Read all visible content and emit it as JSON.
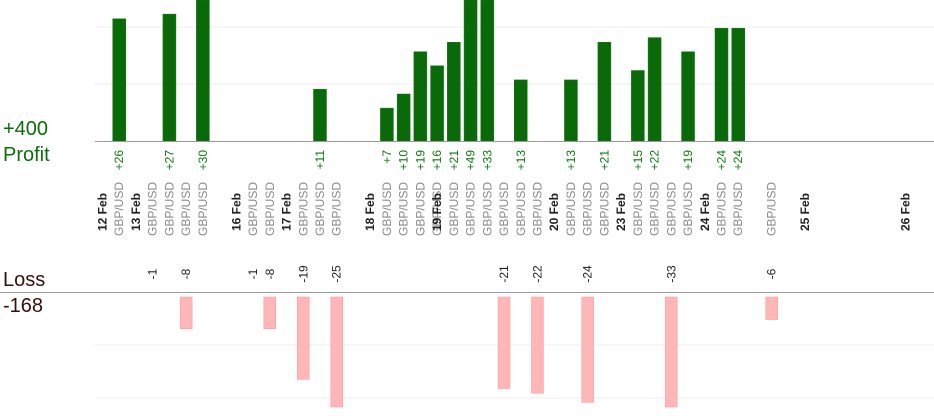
{
  "labels": {
    "profit_total": "+400",
    "profit_word": "Profit",
    "loss_word": "Loss",
    "loss_total": "-168"
  },
  "colors": {
    "profit_bar": "#0a6a0a",
    "profit_bar_edge": "#0c7a0c",
    "profit_text": "#0b7a0b",
    "loss_bar": "#ffb6b6",
    "loss_bar_edge": "#ff9a9a",
    "loss_text": "#222222",
    "axis": "#999999",
    "grid": "#eeeeee",
    "date_text": "#222222",
    "pair_text": "#8a8a8a"
  },
  "chart_data": {
    "type": "bar",
    "profit_max_shown": 30,
    "loss_max_shown": 25,
    "dates": [
      {
        "label": "12 Feb",
        "slot": 0
      },
      {
        "label": "13 Feb",
        "slot": 2
      },
      {
        "label": "16 Feb",
        "slot": 8
      },
      {
        "label": "17 Feb",
        "slot": 11
      },
      {
        "label": "18 Feb",
        "slot": 16
      },
      {
        "label": "19 Feb",
        "slot": 20
      },
      {
        "label": "20 Feb",
        "slot": 27
      },
      {
        "label": "23 Feb",
        "slot": 31
      },
      {
        "label": "24 Feb",
        "slot": 36
      },
      {
        "label": "25 Feb",
        "slot": 42
      },
      {
        "label": "26 Feb",
        "slot": 48
      }
    ],
    "trades": [
      {
        "slot": 1,
        "pair": "GBP/USD",
        "value": 26
      },
      {
        "slot": 3,
        "pair": "GBP/USD",
        "value": -1
      },
      {
        "slot": 4,
        "pair": "GBP/USD",
        "value": 27
      },
      {
        "slot": 5,
        "pair": "GBP/USD",
        "value": -8
      },
      {
        "slot": 6,
        "pair": "GBP/USD",
        "value": 30
      },
      {
        "slot": 9,
        "pair": "GBP/USD",
        "value": -1
      },
      {
        "slot": 10,
        "pair": "GBP/USD",
        "value": -8
      },
      {
        "slot": 12,
        "pair": "GBP/USD",
        "value": -19
      },
      {
        "slot": 13,
        "pair": "GBP/USD",
        "value": 11
      },
      {
        "slot": 14,
        "pair": "GBP/USD",
        "value": -25
      },
      {
        "slot": 17,
        "pair": "GBP/USD",
        "value": 7
      },
      {
        "slot": 18,
        "pair": "GBP/USD",
        "value": 10
      },
      {
        "slot": 19,
        "pair": "GBP/USD",
        "value": 19
      },
      {
        "slot": 20,
        "pair": "GBP/USD",
        "value": 16
      },
      {
        "slot": 21,
        "pair": "GBP/USD",
        "value": 21
      },
      {
        "slot": 22,
        "pair": "GBP/USD",
        "value": 49
      },
      {
        "slot": 23,
        "pair": "GBP/USD",
        "value": 33
      },
      {
        "slot": 24,
        "pair": "GBP/USD",
        "value": -21
      },
      {
        "slot": 25,
        "pair": "GBP/USD",
        "value": 13
      },
      {
        "slot": 26,
        "pair": "GBP/USD",
        "value": -22
      },
      {
        "slot": 28,
        "pair": "GBP/USD",
        "value": 13
      },
      {
        "slot": 29,
        "pair": "GBP/USD",
        "value": -24
      },
      {
        "slot": 30,
        "pair": "GBP/USD",
        "value": 21
      },
      {
        "slot": 32,
        "pair": "GBP/USD",
        "value": 15
      },
      {
        "slot": 33,
        "pair": "GBP/USD",
        "value": 22
      },
      {
        "slot": 34,
        "pair": "GBP/USD",
        "value": -33
      },
      {
        "slot": 35,
        "pair": "GBP/USD",
        "value": 19
      },
      {
        "slot": 37,
        "pair": "GBP/USD",
        "value": 24
      },
      {
        "slot": 38,
        "pair": "GBP/USD",
        "value": 24
      },
      {
        "slot": 40,
        "pair": "GBP/USD",
        "value": -6
      }
    ],
    "grid": true
  }
}
